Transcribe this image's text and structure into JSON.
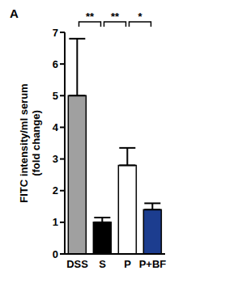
{
  "chart_data": {
    "type": "bar",
    "title": "A",
    "ylabel": "FITC intensity/ml serum (fold change)",
    "categories": [
      "DSS",
      "S",
      "P",
      "P+BF"
    ],
    "values": [
      5.0,
      1.0,
      2.8,
      1.4
    ],
    "errors": [
      1.8,
      0.15,
      0.55,
      0.2
    ],
    "colors": [
      "#a0a0a0",
      "#000000",
      "#ffffff",
      "#1c3d8f"
    ],
    "ylim": [
      0,
      7
    ],
    "yticks": [
      0,
      1,
      2,
      3,
      4,
      5,
      6,
      7
    ],
    "grid": false,
    "annotations": [
      {
        "text": "**",
        "from": "DSS",
        "to": "S"
      },
      {
        "text": "**",
        "from": "S",
        "to": "P"
      },
      {
        "text": "*",
        "from": "P",
        "to": "P+BF"
      }
    ]
  }
}
